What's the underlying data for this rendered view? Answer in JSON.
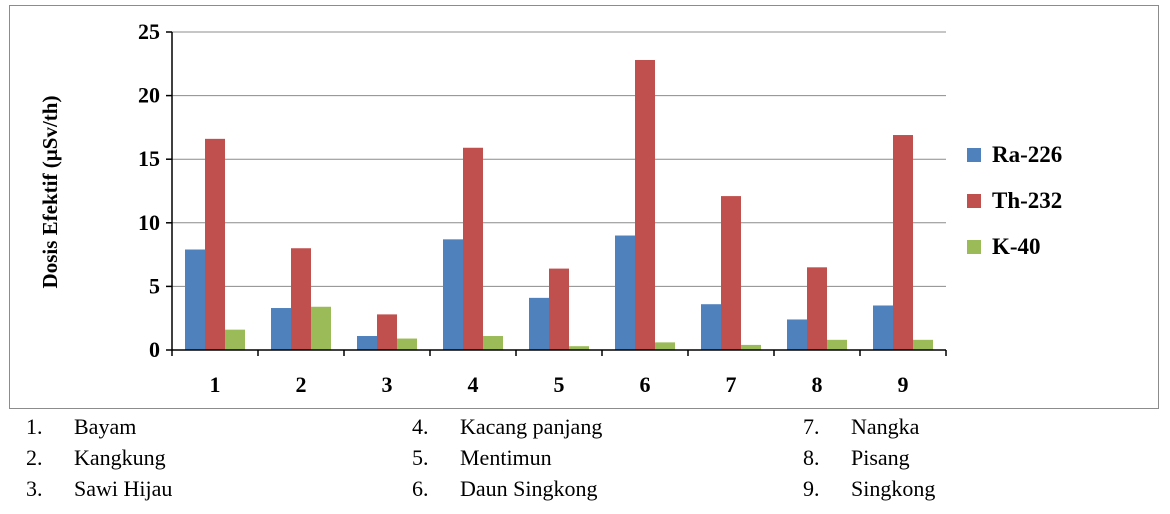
{
  "chart_data": {
    "type": "bar",
    "title": "",
    "xlabel": "",
    "ylabel": "Dosis Efektif (µSv/th)",
    "ylim": [
      0,
      25
    ],
    "yticks": [
      0,
      5,
      10,
      15,
      20,
      25
    ],
    "categories": [
      "1",
      "2",
      "3",
      "4",
      "5",
      "6",
      "7",
      "8",
      "9"
    ],
    "grid": true,
    "legend_position": "right",
    "series": [
      {
        "name": "Ra-226",
        "color": "#4f81bd",
        "values": [
          7.9,
          3.3,
          1.1,
          8.7,
          4.1,
          9.0,
          3.6,
          2.4,
          3.5
        ]
      },
      {
        "name": "Th-232",
        "color": "#c0504d",
        "values": [
          16.6,
          8.0,
          2.8,
          15.9,
          6.4,
          22.8,
          12.1,
          6.5,
          16.9
        ]
      },
      {
        "name": "K-40",
        "color": "#9bbb59",
        "values": [
          1.6,
          3.4,
          0.9,
          1.1,
          0.3,
          0.6,
          0.4,
          0.8,
          0.8
        ]
      }
    ]
  },
  "key": [
    {
      "num": "1.",
      "label": "Bayam"
    },
    {
      "num": "2.",
      "label": "Kangkung"
    },
    {
      "num": "3.",
      "label": "Sawi Hijau"
    },
    {
      "num": "4.",
      "label": "Kacang panjang"
    },
    {
      "num": "5.",
      "label": "Mentimun"
    },
    {
      "num": "6.",
      "label": "Daun Singkong"
    },
    {
      "num": "7.",
      "label": "Nangka"
    },
    {
      "num": "8.",
      "label": "Pisang"
    },
    {
      "num": "9.",
      "label": "Singkong"
    }
  ]
}
